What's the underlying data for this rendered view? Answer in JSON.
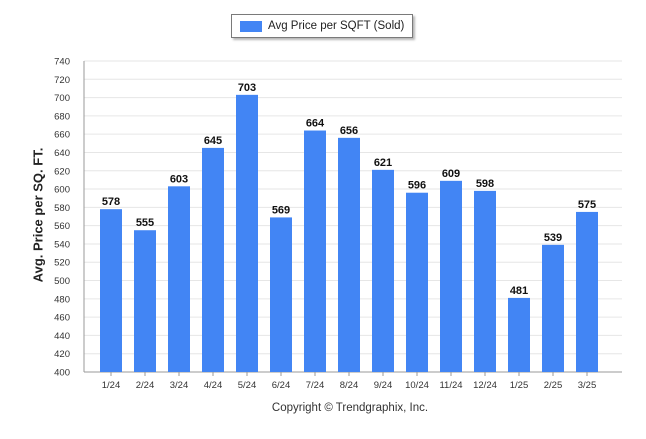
{
  "chart_data": {
    "type": "bar",
    "categories": [
      "1/24",
      "2/24",
      "3/24",
      "4/24",
      "5/24",
      "6/24",
      "7/24",
      "8/24",
      "9/24",
      "10/24",
      "11/24",
      "12/24",
      "1/25",
      "2/25",
      "3/25"
    ],
    "series": [
      {
        "name": "Avg Price per SQFT (Sold)",
        "values": [
          578,
          555,
          603,
          645,
          703,
          569,
          664,
          656,
          621,
          596,
          609,
          598,
          481,
          539,
          575
        ]
      }
    ],
    "ylabel": "Avg. Price per SQ. FT.",
    "xlabel": "",
    "ylim": [
      400,
      740
    ],
    "yticks": [
      400,
      420,
      440,
      460,
      480,
      500,
      520,
      540,
      560,
      580,
      600,
      620,
      640,
      660,
      680,
      700,
      720,
      740
    ],
    "grid": true,
    "legend_position": "top-center",
    "bar_color": "#4285f4"
  },
  "footer": {
    "copyright": "Copyright © Trendgraphix, Inc."
  }
}
